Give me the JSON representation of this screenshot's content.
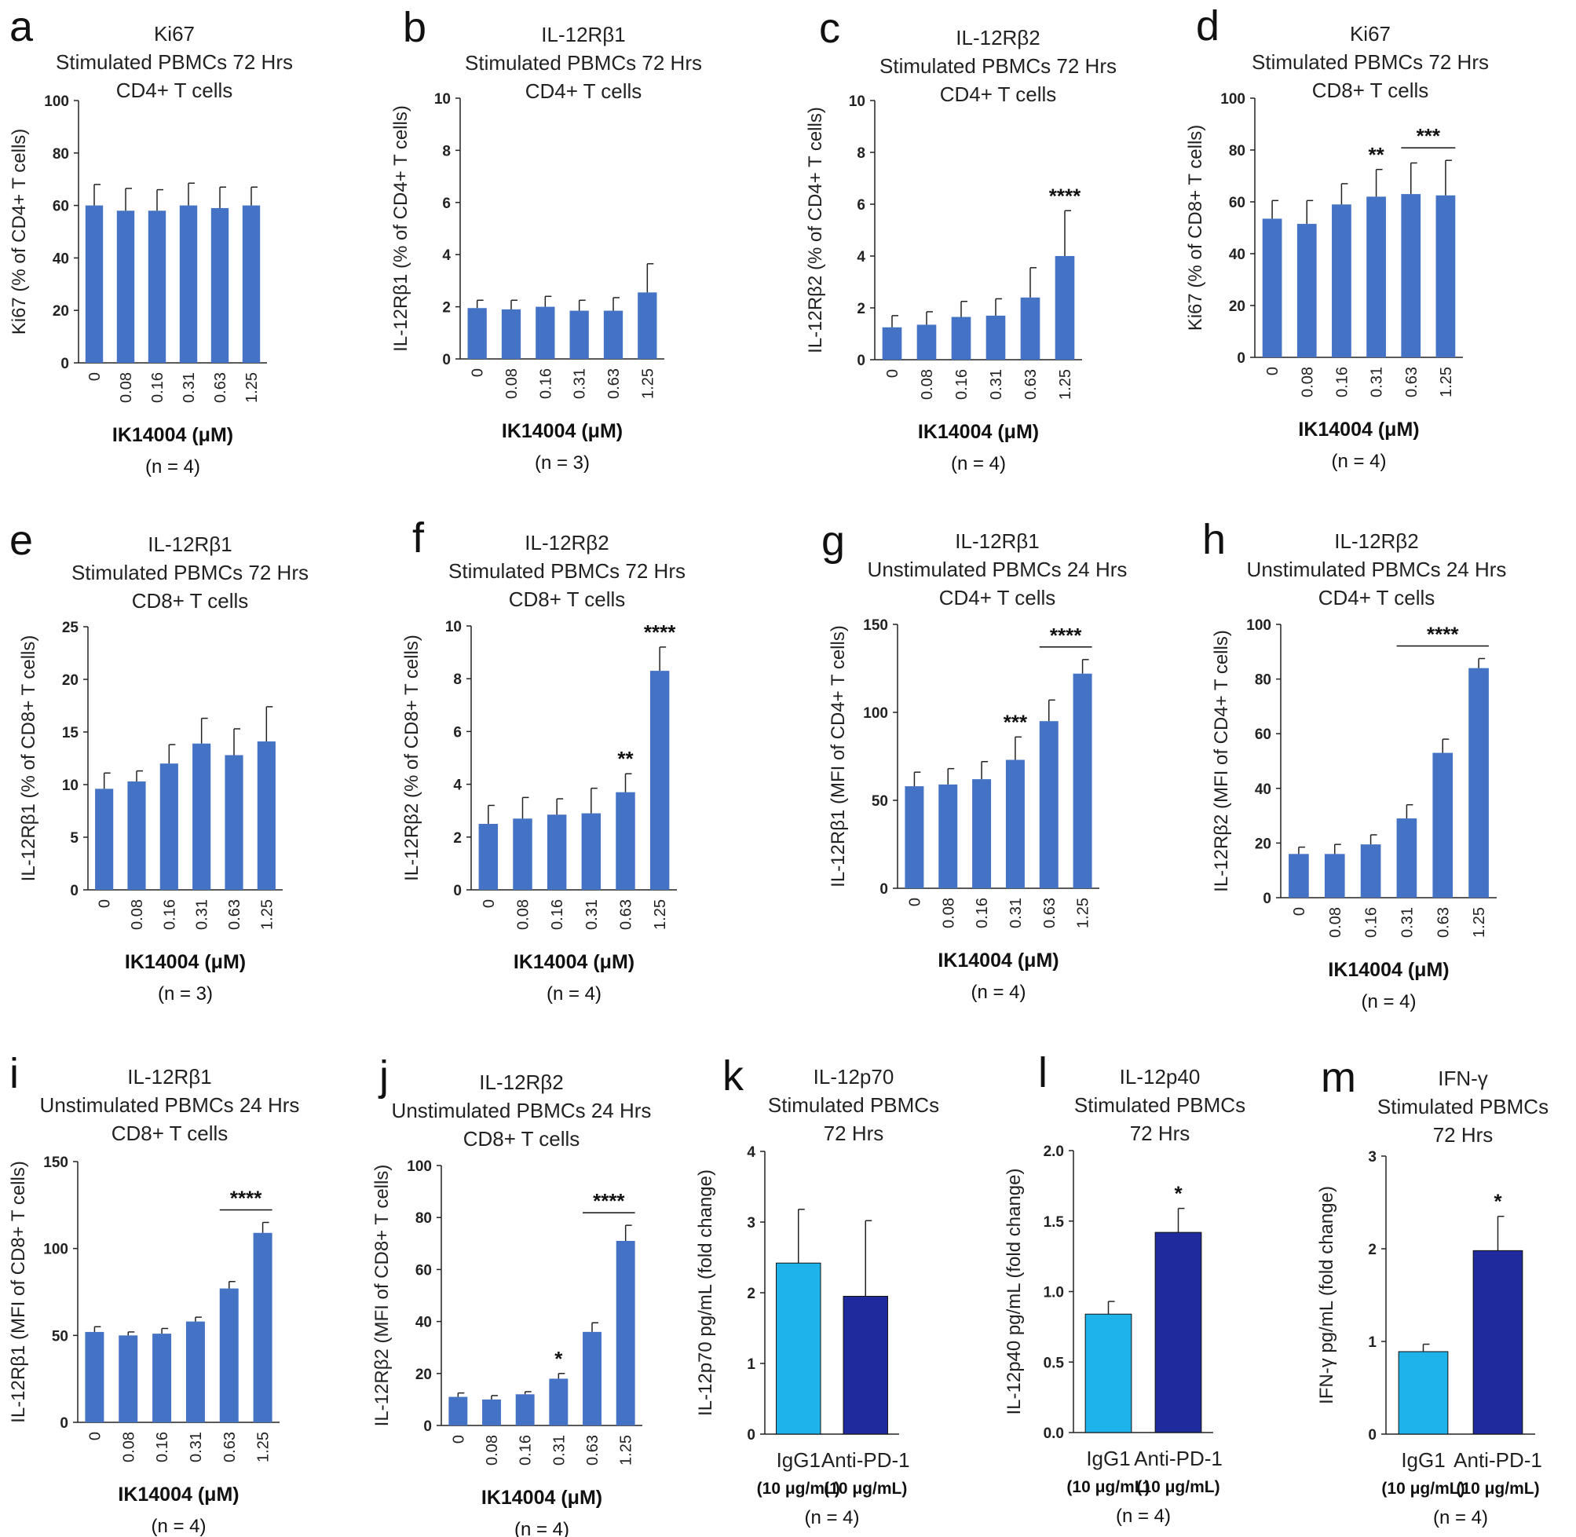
{
  "colors": {
    "bar": "#4472c4",
    "igg1": "#1fb3ec",
    "antipd1": "#1f2a9c",
    "axis": "#222222",
    "text": "#222222"
  },
  "chart_data": [
    {
      "letter": "a",
      "type": "bar",
      "title": [
        "Ki67",
        "Stimulated PBMCs 72 Hrs",
        "CD4+ T cells"
      ],
      "ylabel": "Ki67  (% of CD4+ T cells)",
      "xlabel": "IK14004 (μM)",
      "n": "(n = 4)",
      "ylim": [
        0,
        100
      ],
      "yticks": [
        0,
        20,
        40,
        60,
        80,
        100
      ],
      "categories": [
        "0",
        "0.08",
        "0.16",
        "0.31",
        "0.63",
        "1.25"
      ],
      "values": [
        60,
        58,
        58,
        60,
        59,
        60
      ],
      "errors": [
        8,
        8.5,
        8,
        8.5,
        8,
        7
      ],
      "sig": []
    },
    {
      "letter": "b",
      "type": "bar",
      "title": [
        "IL-12Rβ1",
        "Stimulated PBMCs 72 Hrs",
        "CD4+ T cells"
      ],
      "ylabel": "IL-12Rβ1  (% of CD4+ T cells)",
      "xlabel": "IK14004 (μM)",
      "n": "(n = 3)",
      "ylim": [
        0,
        10
      ],
      "yticks": [
        0,
        2,
        4,
        6,
        8,
        10
      ],
      "categories": [
        "0",
        "0.08",
        "0.16",
        "0.31",
        "0.63",
        "1.25"
      ],
      "values": [
        1.95,
        1.9,
        2.0,
        1.85,
        1.85,
        2.55
      ],
      "errors": [
        0.3,
        0.35,
        0.4,
        0.4,
        0.5,
        1.1
      ],
      "sig": []
    },
    {
      "letter": "c",
      "type": "bar",
      "title": [
        "IL-12Rβ2",
        "Stimulated PBMCs 72 Hrs",
        "CD4+ T cells"
      ],
      "ylabel": "IL-12Rβ2  (% of CD4+ T cells)",
      "xlabel": "IK14004 (μM)",
      "n": "(n = 4)",
      "ylim": [
        0,
        10
      ],
      "yticks": [
        0,
        2,
        4,
        6,
        8,
        10
      ],
      "categories": [
        "0",
        "0.08",
        "0.16",
        "0.31",
        "0.63",
        "1.25"
      ],
      "values": [
        1.25,
        1.35,
        1.65,
        1.7,
        2.4,
        4.0
      ],
      "errors": [
        0.45,
        0.5,
        0.6,
        0.65,
        1.15,
        1.75
      ],
      "sig": [
        {
          "text": "****",
          "from": 5,
          "to": 5
        }
      ]
    },
    {
      "letter": "d",
      "type": "bar",
      "title": [
        "Ki67",
        "Stimulated PBMCs 72 Hrs",
        "CD8+ T cells"
      ],
      "ylabel": "Ki67  (% of CD8+ T cells)",
      "xlabel": "IK14004 (μM)",
      "n": "(n = 4)",
      "ylim": [
        0,
        100
      ],
      "yticks": [
        0,
        20,
        40,
        60,
        80,
        100
      ],
      "categories": [
        "0",
        "0.08",
        "0.16",
        "0.31",
        "0.63",
        "1.25"
      ],
      "values": [
        53.5,
        51.5,
        59,
        62,
        63,
        62.5
      ],
      "errors": [
        7,
        9,
        8,
        10.5,
        12,
        13.5
      ],
      "sig": [
        {
          "text": "**",
          "from": 3,
          "to": 3
        },
        {
          "text": "***",
          "from": 4,
          "to": 5
        }
      ]
    },
    {
      "letter": "e",
      "type": "bar",
      "title": [
        "IL-12Rβ1",
        "Stimulated PBMCs 72 Hrs",
        "CD8+ T cells"
      ],
      "ylabel": "IL-12Rβ1  (% of CD8+ T cells)",
      "xlabel": "IK14004 (μM)",
      "n": "(n = 3)",
      "ylim": [
        0,
        25
      ],
      "yticks": [
        0,
        5,
        10,
        15,
        20,
        25
      ],
      "categories": [
        "0",
        "0.08",
        "0.16",
        "0.31",
        "0.63",
        "1.25"
      ],
      "values": [
        9.6,
        10.3,
        12.0,
        13.9,
        12.8,
        14.1
      ],
      "errors": [
        1.5,
        1.0,
        1.8,
        2.4,
        2.5,
        3.3
      ],
      "sig": []
    },
    {
      "letter": "f",
      "type": "bar",
      "title": [
        "IL-12Rβ2",
        "Stimulated PBMCs 72 Hrs",
        "CD8+ T cells"
      ],
      "ylabel": "IL-12Rβ2  (% of CD8+ T cells)",
      "xlabel": "IK14004 (μM)",
      "n": "(n = 4)",
      "ylim": [
        0,
        10
      ],
      "yticks": [
        0,
        2,
        4,
        6,
        8,
        10
      ],
      "categories": [
        "0",
        "0.08",
        "0.16",
        "0.31",
        "0.63",
        "1.25"
      ],
      "values": [
        2.5,
        2.7,
        2.85,
        2.9,
        3.7,
        8.3
      ],
      "errors": [
        0.7,
        0.8,
        0.6,
        0.95,
        0.7,
        0.9
      ],
      "sig": [
        {
          "text": "**",
          "from": 4,
          "to": 4
        },
        {
          "text": "****",
          "from": 5,
          "to": 5
        }
      ]
    },
    {
      "letter": "g",
      "type": "bar",
      "title": [
        "IL-12Rβ1",
        "Unstimulated PBMCs 24  Hrs",
        "CD4+ T cells"
      ],
      "ylabel": "IL-12Rβ1  (MFI of CD4+ T cells)",
      "xlabel": "IK14004 (μM)",
      "n": "(n = 4)",
      "ylim": [
        0,
        150
      ],
      "yticks": [
        0,
        50,
        100,
        150
      ],
      "categories": [
        "0",
        "0.08",
        "0.16",
        "0.31",
        "0.63",
        "1.25"
      ],
      "values": [
        58,
        59,
        62,
        73,
        95,
        122
      ],
      "errors": [
        8,
        9,
        10,
        13,
        12,
        8
      ],
      "sig": [
        {
          "text": "***",
          "from": 3,
          "to": 3
        },
        {
          "text": "****",
          "from": 4,
          "to": 5
        }
      ]
    },
    {
      "letter": "h",
      "type": "bar",
      "title": [
        "IL-12Rβ2",
        "Unstimulated PBMCs 24  Hrs",
        "CD4+ T cells"
      ],
      "ylabel": "IL-12Rβ2  (MFI of CD4+ T cells)",
      "xlabel": "IK14004 (μM)",
      "n": "(n = 4)",
      "ylim": [
        0,
        100
      ],
      "yticks": [
        0,
        20,
        40,
        60,
        80,
        100
      ],
      "categories": [
        "0",
        "0.08",
        "0.16",
        "0.31",
        "0.63",
        "1.25"
      ],
      "values": [
        16,
        16,
        19.5,
        29,
        53,
        84
      ],
      "errors": [
        2.5,
        3.5,
        3.5,
        5,
        5,
        3.5
      ],
      "sig": [
        {
          "text": "****",
          "from": 3,
          "to": 5
        }
      ]
    },
    {
      "letter": "i",
      "type": "bar",
      "title": [
        "IL-12Rβ1",
        "Unstimulated PBMCs 24  Hrs",
        "CD8+ T cells"
      ],
      "ylabel": "IL-12Rβ1  (MFI of CD8+ T cells)",
      "xlabel": "IK14004 (μM)",
      "n": "(n = 4)",
      "ylim": [
        0,
        150
      ],
      "yticks": [
        0,
        50,
        100,
        150
      ],
      "categories": [
        "0",
        "0.08",
        "0.16",
        "0.31",
        "0.63",
        "1.25"
      ],
      "values": [
        52,
        50,
        51,
        58,
        77,
        109
      ],
      "errors": [
        3,
        2,
        3,
        2.5,
        4,
        6
      ],
      "sig": [
        {
          "text": "****",
          "from": 4,
          "to": 5
        }
      ]
    },
    {
      "letter": "j",
      "type": "bar",
      "title": [
        "IL-12Rβ2",
        "Unstimulated PBMCs 24  Hrs",
        "CD8+ T cells"
      ],
      "ylabel": "IL-12Rβ2  (MFI of CD8+ T cells)",
      "xlabel": "IK14004 (μM)",
      "n": "(n = 4)",
      "ylim": [
        0,
        100
      ],
      "yticks": [
        0,
        20,
        40,
        60,
        80,
        100
      ],
      "categories": [
        "0",
        "0.08",
        "0.16",
        "0.31",
        "0.63",
        "1.25"
      ],
      "values": [
        11,
        10,
        12,
        18,
        36,
        71
      ],
      "errors": [
        1.5,
        1.5,
        1,
        2,
        3.5,
        6
      ],
      "sig": [
        {
          "text": "*",
          "from": 3,
          "to": 3
        },
        {
          "text": "****",
          "from": 4,
          "to": 5
        }
      ]
    },
    {
      "letter": "k",
      "type": "bar",
      "title": [
        "IL-12p70",
        "Stimulated PBMCs",
        "72 Hrs"
      ],
      "ylabel": "IL-12p70  pg/mL (fold change)",
      "n": "(n = 4)",
      "ylim": [
        0,
        4
      ],
      "yticks": [
        "0",
        "1",
        "2",
        "3",
        "4"
      ],
      "categories": [
        "IgG1",
        "Anti-PD-1"
      ],
      "cat_sub": [
        "(10 μg/mL)",
        "(10 μg/mL)"
      ],
      "values": [
        2.42,
        1.95
      ],
      "errors": [
        0.76,
        1.07
      ],
      "sig": []
    },
    {
      "letter": "l",
      "type": "bar",
      "title": [
        "IL-12p40",
        "Stimulated PBMCs",
        "72 Hrs"
      ],
      "ylabel": "IL-12p40  pg/mL (fold change)",
      "n": "(n = 4)",
      "ylim": [
        0,
        2
      ],
      "yticks": [
        "0.0",
        "0.5",
        "1.0",
        "1.5",
        "2.0"
      ],
      "categories": [
        "IgG1",
        "Anti-PD-1"
      ],
      "cat_sub": [
        "(10 μg/mL)",
        "(10 μg/mL)"
      ],
      "values": [
        0.84,
        1.42
      ],
      "errors": [
        0.09,
        0.17
      ],
      "sig": [
        {
          "text": "*",
          "from": 1,
          "to": 1
        }
      ]
    },
    {
      "letter": "m",
      "type": "bar",
      "title": [
        "IFN-γ",
        "Stimulated PBMCs",
        "72 Hrs"
      ],
      "ylabel": "IFN-γ pg/mL (fold change)",
      "n": "(n = 4)",
      "ylim": [
        0,
        3
      ],
      "yticks": [
        "0",
        "1",
        "2",
        "3"
      ],
      "categories": [
        "IgG1",
        "Anti-PD-1"
      ],
      "cat_sub": [
        "(10 μg/mL)",
        "(10 μg/mL)"
      ],
      "values": [
        0.89,
        1.98
      ],
      "errors": [
        0.08,
        0.37
      ],
      "sig": [
        {
          "text": "*",
          "from": 1,
          "to": 1
        }
      ]
    }
  ]
}
